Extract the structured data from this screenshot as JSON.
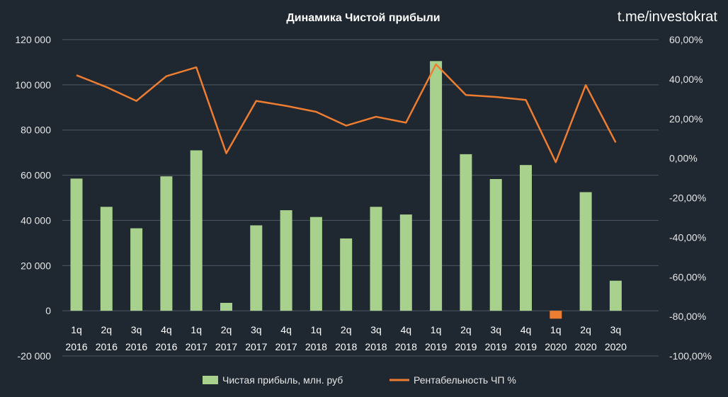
{
  "chart_data": {
    "type": "bar",
    "title": "Динамика  Чистой прибыли",
    "watermark": "t.me/investokrat",
    "categories": [
      [
        "1q",
        "2016"
      ],
      [
        "2q",
        "2016"
      ],
      [
        "3q",
        "2016"
      ],
      [
        "4q",
        "2016"
      ],
      [
        "1q",
        "2017"
      ],
      [
        "2q",
        "2017"
      ],
      [
        "3q",
        "2017"
      ],
      [
        "4q",
        "2017"
      ],
      [
        "1q",
        "2018"
      ],
      [
        "2q",
        "2018"
      ],
      [
        "3q",
        "2018"
      ],
      [
        "4q",
        "2018"
      ],
      [
        "1q",
        "2019"
      ],
      [
        "2q",
        "2019"
      ],
      [
        "3q",
        "2019"
      ],
      [
        "4q",
        "2019"
      ],
      [
        "1q",
        "2020"
      ],
      [
        "2q",
        "2020"
      ],
      [
        "3q",
        "2020"
      ]
    ],
    "series": [
      {
        "name": "Чистая прибыль, млн. руб",
        "type": "bar",
        "axis": "left",
        "color": "#a9d18e",
        "negative_color": "#ed7d31",
        "values": [
          58500,
          46000,
          36500,
          59500,
          71000,
          3500,
          37800,
          44500,
          41500,
          32000,
          46000,
          42600,
          110500,
          69300,
          58300,
          64500,
          -3500,
          52500,
          13300
        ]
      },
      {
        "name": "Рентабельность ЧП %",
        "type": "line",
        "axis": "right",
        "color": "#ed7d31",
        "values": [
          42,
          36,
          29,
          41.5,
          46,
          2.5,
          29,
          26.5,
          23.5,
          16.5,
          21,
          18,
          47.5,
          32,
          31,
          29.5,
          -2,
          37,
          8
        ]
      }
    ],
    "y_left": {
      "min": -20000,
      "max": 120000,
      "step": 20000,
      "ticks": [
        "-20 000",
        "0",
        "20 000",
        "40 000",
        "60 000",
        "80 000",
        "100 000",
        "120 000"
      ]
    },
    "y_right": {
      "min": -100,
      "max": 60,
      "step": 20,
      "ticks": [
        "-100,00%",
        "-80,00%",
        "-60,00%",
        "-40,00%",
        "-20,00%",
        "0,00%",
        "20,00%",
        "40,00%",
        "60,00%"
      ]
    },
    "grid": true,
    "legend_position": "bottom"
  }
}
